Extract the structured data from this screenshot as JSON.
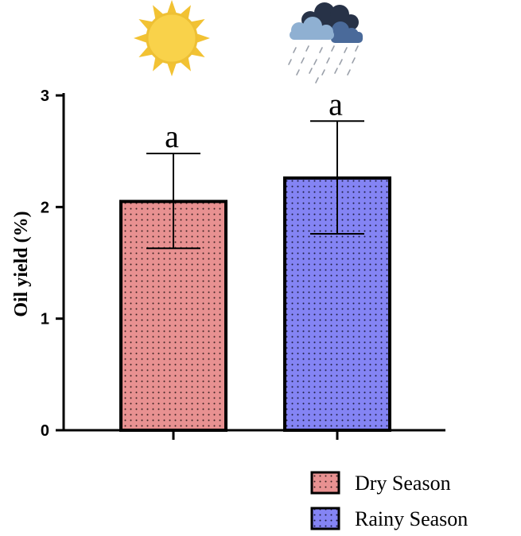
{
  "chart_data": {
    "type": "bar",
    "categories": [
      "Dry Season",
      "Rainy Season"
    ],
    "values": [
      2.05,
      2.26
    ],
    "error_low": [
      1.63,
      1.76
    ],
    "error_high": [
      2.48,
      2.77
    ],
    "significance": [
      "a",
      "a"
    ],
    "colors": [
      "#e89191",
      "#8484f4"
    ],
    "icons": [
      "sun-icon",
      "rain-cloud-icon"
    ],
    "ylabel": "Oil yield (%)",
    "xlabel": "",
    "ylim": [
      0,
      3
    ],
    "yticks": [
      "0",
      "1",
      "2",
      "3"
    ],
    "grid": false,
    "legend": {
      "position": "bottom-right",
      "entries": [
        "Dry Season",
        "Rainy Season"
      ]
    }
  }
}
